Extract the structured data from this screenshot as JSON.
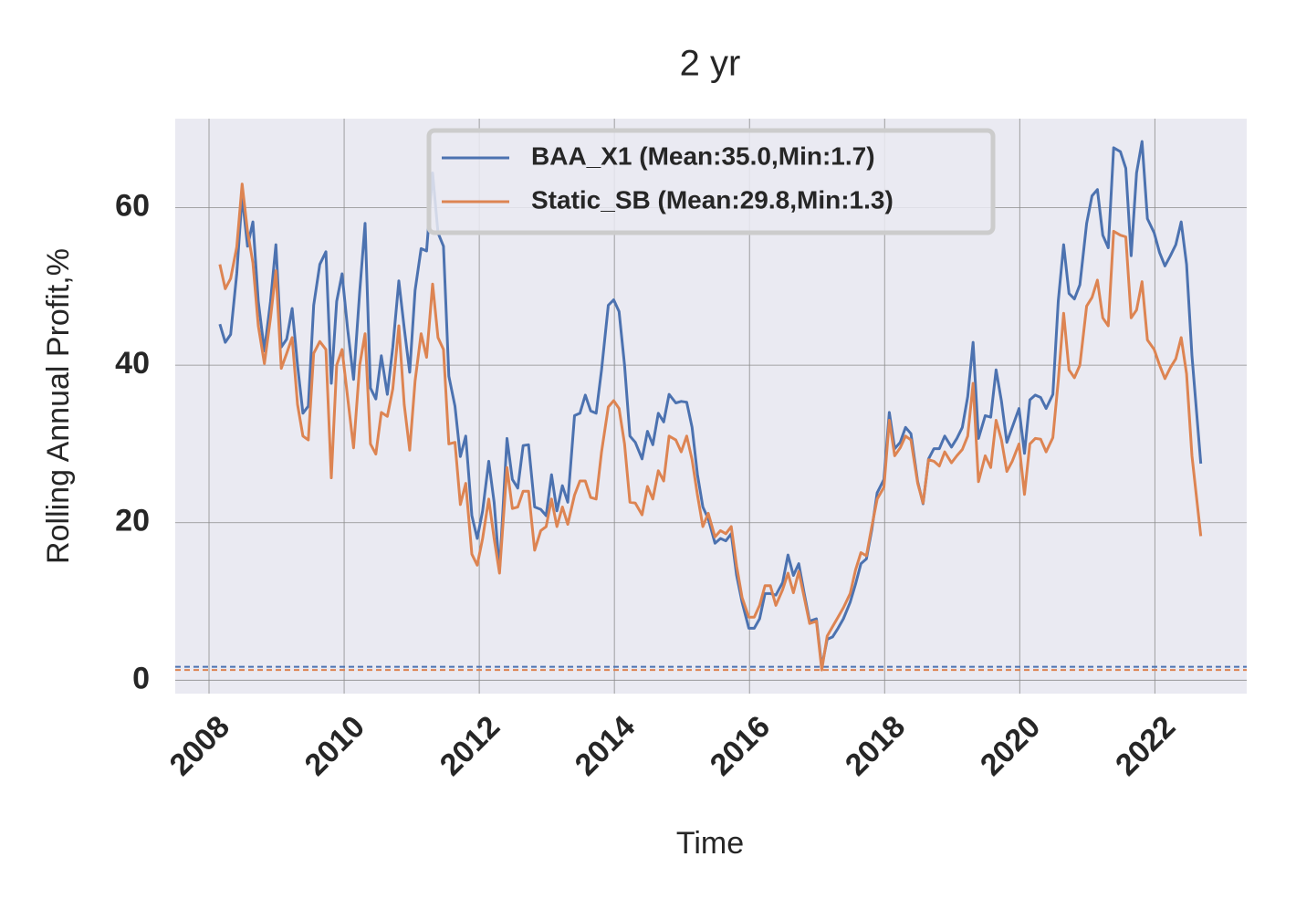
{
  "chart_data": {
    "type": "line",
    "title": "2 yr",
    "xlabel": "Time",
    "ylabel": "Rolling Annual Profit,%",
    "xlim": [
      2007.5,
      2023.36
    ],
    "xticks": [
      2008,
      2010,
      2012,
      2014,
      2016,
      2018,
      2020,
      2022
    ],
    "ylim": [
      -1.7,
      71.3
    ],
    "yticks": [
      0,
      20,
      40,
      60
    ],
    "grid": true,
    "legend": "upper center",
    "x": [
      2008.16,
      2008.24,
      2008.32,
      2008.41,
      2008.49,
      2008.57,
      2008.65,
      2008.73,
      2008.82,
      2008.91,
      2008.99,
      2009.07,
      2009.15,
      2009.23,
      2009.31,
      2009.39,
      2009.47,
      2009.55,
      2009.64,
      2009.73,
      2009.81,
      2009.89,
      2009.97,
      2010.05,
      2010.14,
      2010.23,
      2010.31,
      2010.39,
      2010.47,
      2010.55,
      2010.64,
      2010.72,
      2010.81,
      2010.89,
      2010.97,
      2011.05,
      2011.14,
      2011.22,
      2011.31,
      2011.39,
      2011.47,
      2011.55,
      2011.64,
      2011.72,
      2011.8,
      2011.89,
      2011.97,
      2012.05,
      2012.14,
      2012.22,
      2012.3,
      2012.41,
      2012.49,
      2012.57,
      2012.65,
      2012.73,
      2012.82,
      2012.91,
      2012.99,
      2013.07,
      2013.15,
      2013.23,
      2013.31,
      2013.41,
      2013.49,
      2013.57,
      2013.65,
      2013.73,
      2013.81,
      2013.91,
      2013.99,
      2014.07,
      2014.15,
      2014.23,
      2014.31,
      2014.41,
      2014.49,
      2014.57,
      2014.65,
      2014.73,
      2014.81,
      2014.91,
      2014.99,
      2015.07,
      2015.15,
      2015.23,
      2015.31,
      2015.39,
      2015.49,
      2015.57,
      2015.65,
      2015.73,
      2015.81,
      2015.89,
      2015.99,
      2016.07,
      2016.15,
      2016.23,
      2016.31,
      2016.39,
      2016.49,
      2016.57,
      2016.65,
      2016.73,
      2016.81,
      2016.89,
      2016.99,
      2017.07,
      2017.15,
      2017.23,
      2017.31,
      2017.39,
      2017.49,
      2017.57,
      2017.65,
      2017.73,
      2017.81,
      2017.89,
      2017.99,
      2018.07,
      2018.15,
      2018.23,
      2018.31,
      2018.39,
      2018.49,
      2018.57,
      2018.65,
      2018.73,
      2018.81,
      2018.89,
      2018.99,
      2019.07,
      2019.15,
      2019.23,
      2019.31,
      2019.39,
      2019.49,
      2019.57,
      2019.65,
      2019.73,
      2019.81,
      2019.89,
      2019.99,
      2020.07,
      2020.15,
      2020.23,
      2020.31,
      2020.39,
      2020.49,
      2020.57,
      2020.65,
      2020.73,
      2020.81,
      2020.89,
      2020.99,
      2021.07,
      2021.15,
      2021.23,
      2021.31,
      2021.39,
      2021.49,
      2021.57,
      2021.65,
      2021.73,
      2021.81,
      2021.89,
      2021.99,
      2022.07,
      2022.15,
      2022.23,
      2022.31,
      2022.39,
      2022.47,
      2022.55,
      2022.68
    ],
    "series": [
      {
        "name": "BAA_X1 (Mean:35.0,Min:1.7)",
        "color": "#4c72b0",
        "min": 1.7,
        "values": [
          45.2,
          42.9,
          43.9,
          51.6,
          61.5,
          55.1,
          58.2,
          48.1,
          41.8,
          48.1,
          55.3,
          42.3,
          43.3,
          47.2,
          40,
          33.9,
          34.8,
          47.6,
          52.8,
          54.4,
          37.7,
          48.1,
          51.6,
          44.7,
          38.2,
          49.3,
          58,
          37.1,
          35.7,
          41.2,
          36.3,
          42.3,
          50.7,
          44.7,
          39.1,
          49.5,
          54.8,
          54.5,
          64.4,
          56.8,
          55.1,
          38.6,
          34.8,
          28.4,
          31,
          20.9,
          18,
          21.5,
          27.8,
          22.6,
          13.9,
          30.7,
          25.5,
          24.4,
          29.8,
          29.9,
          22,
          21.7,
          20.9,
          26.1,
          21.5,
          24.7,
          22.6,
          33.6,
          33.9,
          36.2,
          34.2,
          33.9,
          39.4,
          47.6,
          48.3,
          46.8,
          40,
          31,
          30.2,
          28.1,
          31.6,
          29.9,
          33.9,
          32.8,
          36.3,
          35.2,
          35.4,
          35.3,
          32.1,
          26.1,
          22,
          20.5,
          17.4,
          18,
          17.7,
          18.6,
          13.3,
          9.9,
          6.6,
          6.6,
          7.8,
          11,
          11,
          10.8,
          12.4,
          15.9,
          13.3,
          14.8,
          11,
          7.5,
          7.8,
          1.7,
          5.2,
          5.5,
          6.6,
          7.8,
          9.9,
          12.2,
          14.8,
          15.4,
          19.1,
          23.8,
          25.5,
          34,
          29.4,
          30.2,
          32.1,
          31.3,
          25.2,
          22.4,
          28.1,
          29.4,
          29.4,
          31,
          29.6,
          30.7,
          32.1,
          36,
          42.9,
          30.7,
          33.6,
          33.4,
          39.4,
          35.4,
          30.2,
          32.1,
          34.5,
          28.8,
          35.6,
          36.2,
          35.9,
          34.5,
          36.3,
          48.1,
          55.3,
          49.1,
          48.4,
          50.2,
          58,
          61.5,
          62.3,
          56.5,
          54.9,
          67.6,
          67.1,
          65,
          53.9,
          64.4,
          68.4,
          58.6,
          56.8,
          54.3,
          52.6,
          53.9,
          55.3,
          58.2,
          52.8,
          41.2,
          27.5
        ]
      },
      {
        "name": "Static_SB (Mean:29.8,Min:1.3)",
        "color": "#dd8452",
        "min": 1.3,
        "values": [
          52.8,
          49.7,
          51,
          55,
          63,
          57,
          53,
          45,
          40.2,
          46,
          52,
          39.6,
          41.5,
          43.5,
          35,
          31,
          30.5,
          41.5,
          43,
          42,
          25.7,
          40,
          42,
          36,
          29.5,
          40,
          44,
          30,
          28.7,
          34,
          33.5,
          37,
          45,
          35,
          29.2,
          38,
          44,
          41,
          50.3,
          43.5,
          42,
          30,
          30.2,
          22.3,
          25,
          16,
          14.6,
          18,
          23,
          18,
          13.6,
          27,
          21.8,
          22,
          24,
          24,
          16.5,
          19,
          19.5,
          23,
          19.5,
          22,
          19.8,
          23.5,
          25.3,
          25.3,
          23.2,
          23,
          29,
          34.7,
          35.5,
          34.5,
          30,
          22.6,
          22.5,
          21,
          24.6,
          23,
          26.6,
          25.3,
          31,
          30.5,
          29,
          31,
          28,
          23.5,
          19.5,
          21.2,
          18.2,
          19,
          18.6,
          19.5,
          14.5,
          10.5,
          8,
          8,
          9.5,
          12,
          12,
          9.5,
          11.5,
          13.6,
          11.1,
          13.8,
          10.5,
          7.2,
          7.5,
          1.3,
          5.6,
          6.8,
          8,
          9.2,
          11,
          14,
          16.2,
          15.8,
          19.5,
          23,
          24.5,
          33,
          28.5,
          29.5,
          31,
          30.5,
          25,
          22.5,
          28,
          27.8,
          27.2,
          29,
          27.6,
          28.5,
          29.3,
          31,
          37.7,
          25.2,
          28.5,
          27,
          33,
          30.5,
          26.5,
          27.8,
          30,
          23.6,
          30,
          30.7,
          30.6,
          29,
          30.8,
          38,
          46.6,
          39.4,
          38.4,
          40,
          47.5,
          48.6,
          50.8,
          46,
          45,
          57,
          56.5,
          56.3,
          46,
          47,
          50.6,
          43.2,
          42,
          40,
          38.3,
          39.7,
          40.8,
          43.5,
          38.9,
          28.5,
          18.3
        ]
      }
    ]
  }
}
